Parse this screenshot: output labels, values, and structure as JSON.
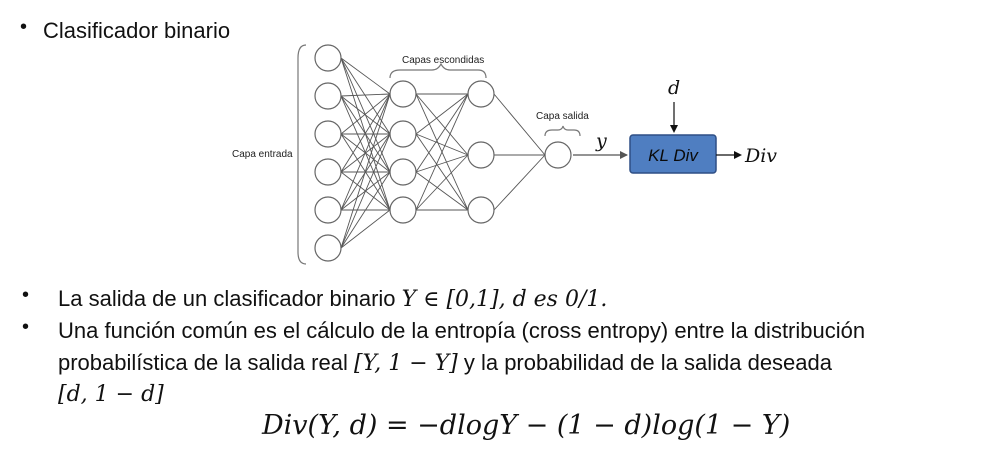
{
  "title_bullet": "Clasificador binario",
  "diagram": {
    "input_label": "Capa entrada",
    "hidden_label": "Capas escondidas",
    "output_label": "Capa salida",
    "y_label": "y",
    "d_label": "d",
    "kl_label": "KL Div",
    "div_label": "Div"
  },
  "bullets": {
    "b1_prefix": "La salida de un clasificador binario ",
    "b1_math": "Y ∈ [0,1], d es 0/1.",
    "b2_line1": "Una función común es el cálculo de la entropía (cross entropy) entre la distribución",
    "b2_line2_a": "probabilística de la salida real ",
    "b2_line2_math": "[Y, 1 − Y]",
    "b2_line2_b": " y la probabilidad de la salida deseada",
    "b2_line3_math": "[d, 1 − d]"
  },
  "formula": "Div(Y, d) = −dlogY − (1 − d)log(1 − Y)",
  "colors": {
    "kl_box_fill": "#4f7ec1",
    "kl_box_stroke": "#2f4f85"
  }
}
